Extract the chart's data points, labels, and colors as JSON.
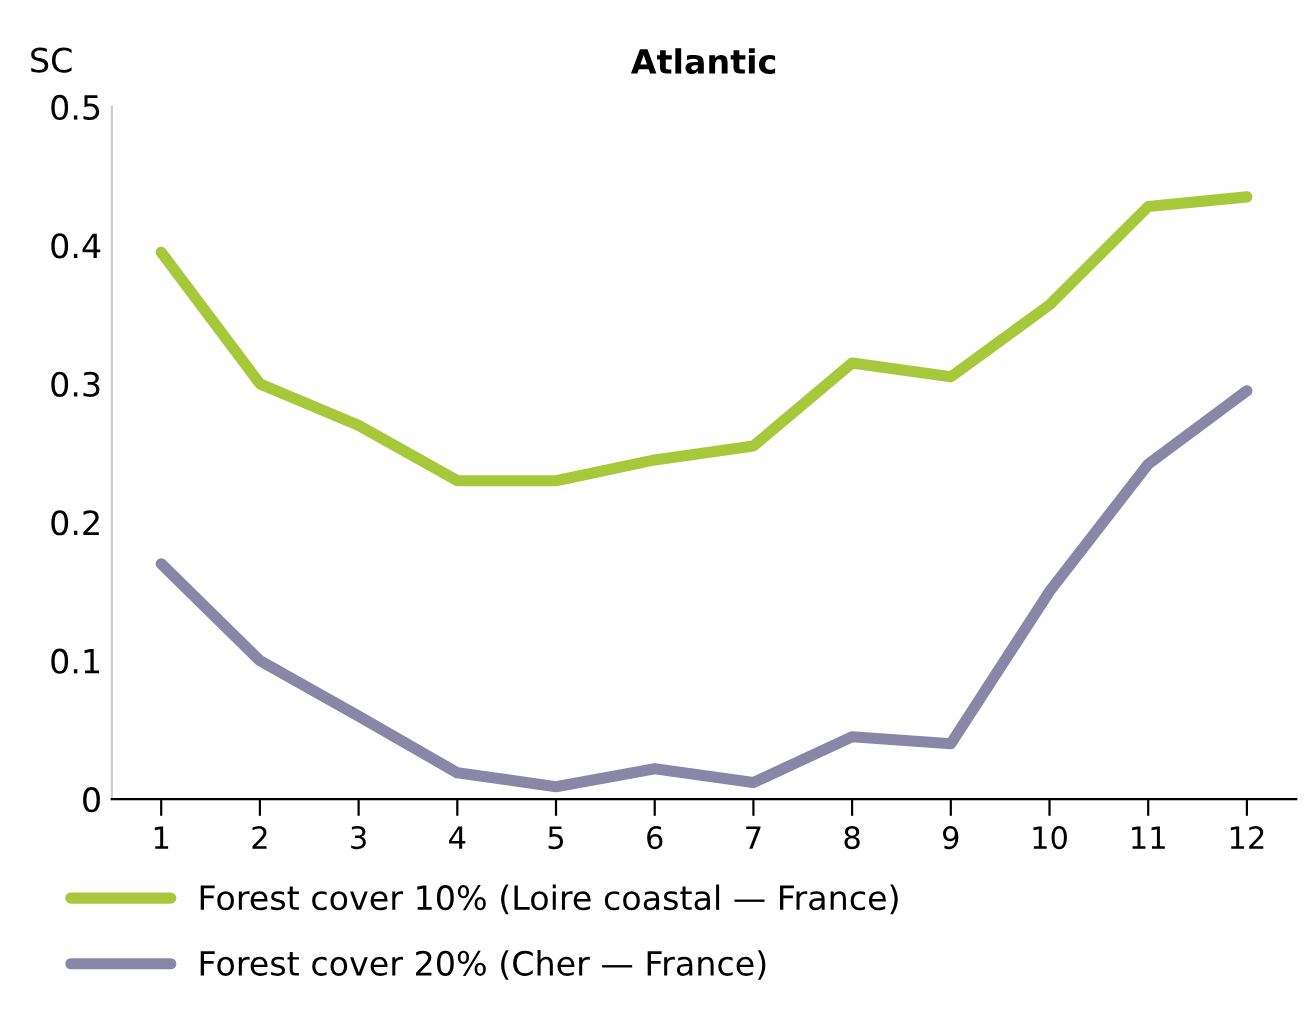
{
  "chart_data": {
    "type": "line",
    "title": "Atlantic",
    "ylabel": "SC",
    "categories": [
      "1",
      "2",
      "3",
      "4",
      "5",
      "6",
      "7",
      "8",
      "9",
      "10",
      "11",
      "12"
    ],
    "series": [
      {
        "name": "Forest cover 10% (Loire coastal — France)",
        "color": "#a8c83c",
        "values": [
          0.395,
          0.3,
          0.27,
          0.23,
          0.23,
          0.245,
          0.255,
          0.315,
          0.305,
          0.357,
          0.428,
          0.435
        ]
      },
      {
        "name": "Forest cover 20% (Cher — France)",
        "color": "#8a86a8",
        "values": [
          0.17,
          0.1,
          0.06,
          0.019,
          0.009,
          0.022,
          0.012,
          0.045,
          0.04,
          0.15,
          0.242,
          0.295
        ]
      }
    ],
    "ylim": [
      0,
      0.5
    ],
    "yticks": [
      {
        "value": 0,
        "label": "0"
      },
      0.1,
      0.2,
      0.3,
      0.4,
      0.5
    ],
    "grid": false,
    "legend": "bottom",
    "marker": "none",
    "line_style": "solid"
  }
}
